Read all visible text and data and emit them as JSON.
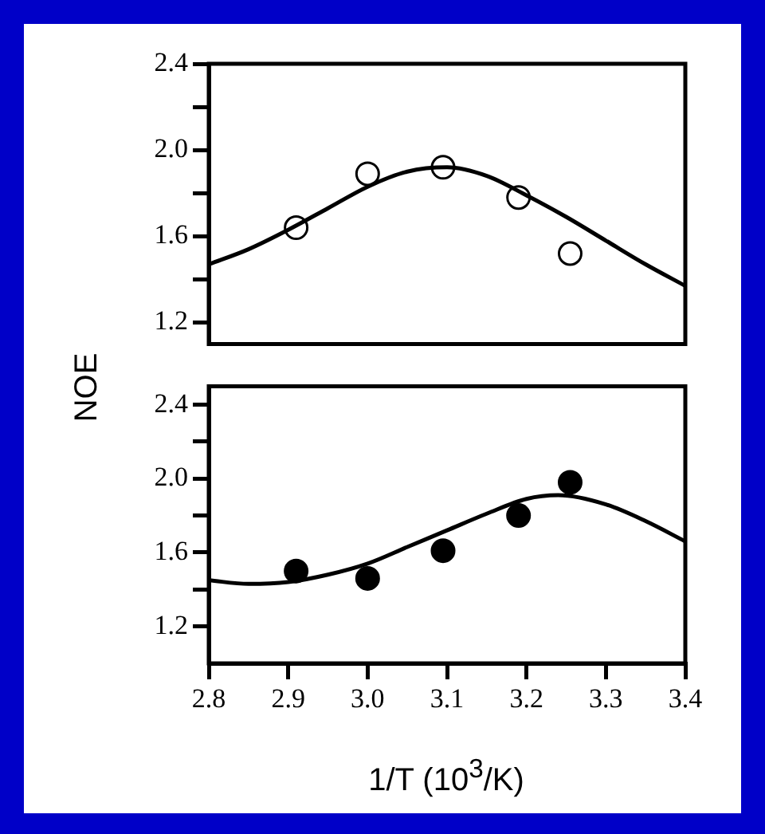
{
  "chart_data": [
    {
      "type": "scatter",
      "ylabel": "NOE",
      "xlim": [
        2.8,
        3.4
      ],
      "ylim": [
        1.1,
        2.4
      ],
      "tick_labels": "y",
      "grid": false,
      "legend": false,
      "yticks": [
        1.2,
        {
          "value": 1.4,
          "label": null
        },
        1.6,
        {
          "value": 1.8,
          "label": null
        },
        {
          "value": 2.0,
          "label": "2.0"
        },
        {
          "value": 2.2,
          "label": null
        },
        2.4
      ],
      "series": [
        {
          "marker": "circle",
          "color": "#000000",
          "x": [
            2.91,
            3.0,
            3.095,
            3.19,
            3.255
          ],
          "values": [
            1.64,
            1.89,
            1.92,
            1.78,
            1.52
          ]
        },
        {
          "type": "line",
          "marker": "none",
          "color": "#000000",
          "x": [
            2.8,
            2.85,
            2.9,
            2.95,
            3.0,
            3.05,
            3.1,
            3.15,
            3.2,
            3.25,
            3.3,
            3.35,
            3.4
          ],
          "values": [
            1.47,
            1.54,
            1.63,
            1.73,
            1.83,
            1.9,
            1.92,
            1.88,
            1.79,
            1.69,
            1.58,
            1.47,
            1.37
          ]
        }
      ]
    },
    {
      "type": "scatter",
      "xlabel": "1/T (10$^{3}$/K)",
      "xlim": [
        2.8,
        3.4
      ],
      "ylim": [
        1.0,
        2.5
      ],
      "grid": false,
      "legend": false,
      "xticks": [
        2.8,
        2.9,
        {
          "value": 3.0,
          "label": "3.0"
        },
        3.1,
        3.2,
        3.3,
        3.4
      ],
      "yticks": [
        1.2,
        {
          "value": 1.4,
          "label": null
        },
        1.6,
        {
          "value": 1.8,
          "label": null
        },
        {
          "value": 2.0,
          "label": "2.0"
        },
        {
          "value": 2.2,
          "label": null
        },
        2.4
      ],
      "series": [
        {
          "marker": "circle",
          "color": "#000000",
          "x": [
            2.91,
            3.0,
            3.095,
            3.19,
            3.255
          ],
          "values": [
            1.5,
            1.46,
            1.61,
            1.8,
            1.98
          ]
        },
        {
          "type": "line",
          "marker": "none",
          "color": "#000000",
          "x": [
            2.8,
            2.85,
            2.9,
            2.95,
            3.0,
            3.05,
            3.1,
            3.15,
            3.2,
            3.24,
            3.3,
            3.35,
            3.4
          ],
          "values": [
            1.45,
            1.43,
            1.44,
            1.48,
            1.54,
            1.63,
            1.72,
            1.81,
            1.89,
            1.91,
            1.86,
            1.77,
            1.66
          ]
        }
      ]
    }
  ]
}
